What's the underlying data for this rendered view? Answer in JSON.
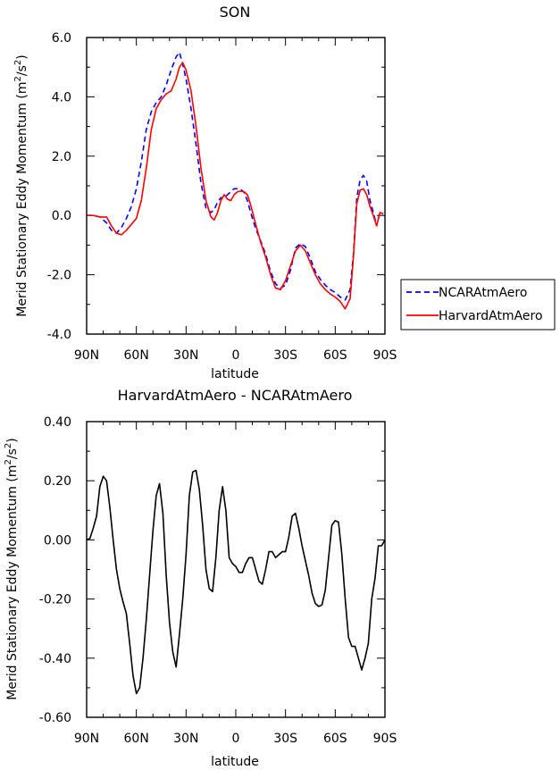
{
  "chart_data": [
    {
      "type": "line",
      "title": "SON",
      "xlabel": "latitude",
      "ylabel": "Merid Stationary Eddy Momentum (m²/s²)",
      "ylabel_parts": {
        "main": "Merid Stationary Eddy Momentum (m",
        "sup1": "2",
        "mid": "/s",
        "sup2": "2",
        "end": ")"
      },
      "xlim": [
        90,
        -90
      ],
      "ylim": [
        -4,
        6
      ],
      "xticks": [
        90,
        60,
        30,
        0,
        -30,
        -60,
        -90
      ],
      "xtick_labels": [
        "90N",
        "60N",
        "30N",
        "0",
        "30S",
        "60S",
        "90S"
      ],
      "yticks": [
        -4,
        -2,
        0,
        2,
        4,
        6
      ],
      "ytick_labels": [
        "-4.0",
        "-2.0",
        "0.0",
        "2.0",
        "4.0",
        "6.0"
      ],
      "legend_position": "right",
      "series": [
        {
          "name": "NCARAtmAero",
          "color": "#0000ff",
          "dash": "dashed",
          "x": [
            90,
            86,
            82,
            78,
            75,
            72,
            69,
            66,
            63,
            60,
            57,
            54,
            51,
            48,
            45,
            42,
            39,
            36,
            34,
            32,
            30,
            27,
            24,
            21,
            18,
            15,
            13,
            11,
            9,
            7,
            5,
            3,
            1,
            -1,
            -3,
            -5,
            -7,
            -9,
            -12,
            -15,
            -18,
            -21,
            -24,
            -27,
            -30,
            -33,
            -36,
            -39,
            -42,
            -45,
            -48,
            -51,
            -54,
            -57,
            -60,
            -63,
            -66,
            -69,
            -71,
            -73,
            -75,
            -77,
            -79,
            -81,
            -83,
            -85,
            -87,
            -89
          ],
          "y": [
            0.0,
            0.0,
            -0.05,
            -0.25,
            -0.5,
            -0.6,
            -0.4,
            -0.1,
            0.3,
            0.9,
            1.8,
            2.9,
            3.5,
            3.8,
            4.0,
            4.4,
            4.9,
            5.35,
            5.5,
            5.1,
            4.6,
            3.6,
            2.4,
            1.1,
            0.25,
            0.1,
            0.2,
            0.45,
            0.6,
            0.6,
            0.7,
            0.8,
            0.9,
            0.9,
            0.88,
            0.78,
            0.5,
            0.1,
            -0.45,
            -0.85,
            -1.3,
            -1.9,
            -2.3,
            -2.45,
            -2.35,
            -1.85,
            -1.1,
            -0.95,
            -1.05,
            -1.45,
            -1.9,
            -2.15,
            -2.35,
            -2.5,
            -2.6,
            -2.75,
            -2.85,
            -2.5,
            -1.3,
            0.6,
            1.2,
            1.35,
            1.15,
            0.5,
            0.1,
            -0.35,
            0.1,
            0.05
          ]
        },
        {
          "name": "HarvardAtmAero",
          "color": "#ff0000",
          "dash": "solid",
          "x": [
            90,
            86,
            82,
            78,
            75,
            72,
            69,
            66,
            63,
            60,
            57,
            54,
            51,
            48,
            45,
            42,
            39,
            36,
            34,
            32,
            30,
            27,
            24,
            21,
            18,
            15,
            13,
            11,
            9,
            7,
            5,
            3,
            1,
            -1,
            -3,
            -5,
            -7,
            -9,
            -12,
            -15,
            -18,
            -21,
            -24,
            -27,
            -30,
            -33,
            -36,
            -39,
            -42,
            -45,
            -48,
            -51,
            -54,
            -57,
            -60,
            -63,
            -66,
            -69,
            -71,
            -73,
            -75,
            -77,
            -79,
            -81,
            -83,
            -85,
            -87,
            -89
          ],
          "y": [
            0.0,
            0.0,
            -0.05,
            -0.05,
            -0.35,
            -0.6,
            -0.65,
            -0.5,
            -0.3,
            -0.1,
            0.5,
            1.6,
            2.9,
            3.6,
            3.9,
            4.1,
            4.2,
            4.6,
            5.0,
            5.15,
            4.9,
            4.2,
            3.0,
            1.6,
            0.5,
            -0.05,
            -0.15,
            0.1,
            0.5,
            0.7,
            0.55,
            0.5,
            0.7,
            0.8,
            0.82,
            0.8,
            0.7,
            0.35,
            -0.3,
            -0.9,
            -1.4,
            -2.0,
            -2.45,
            -2.5,
            -2.2,
            -1.7,
            -1.2,
            -1.0,
            -1.2,
            -1.6,
            -2.0,
            -2.3,
            -2.5,
            -2.65,
            -2.75,
            -2.9,
            -3.15,
            -2.8,
            -1.4,
            0.4,
            0.85,
            0.9,
            0.7,
            0.3,
            0.0,
            -0.35,
            0.1,
            0.05
          ]
        }
      ]
    },
    {
      "type": "line",
      "title": "HarvardAtmAero - NCARAtmAero",
      "xlabel": "latitude",
      "ylabel": "Merid Stationary Eddy Momentum (m²/s²)",
      "ylabel_parts": {
        "main": "Merid Stationary Eddy Momentum (m",
        "sup1": "2",
        "mid": "/s",
        "sup2": "2",
        "end": ")"
      },
      "xlim": [
        90,
        -90
      ],
      "ylim": [
        -0.6,
        0.4
      ],
      "xticks": [
        90,
        60,
        30,
        0,
        -30,
        -60,
        -90
      ],
      "xtick_labels": [
        "90N",
        "60N",
        "30N",
        "0",
        "30S",
        "60S",
        "90S"
      ],
      "yticks": [
        -0.6,
        -0.4,
        -0.2,
        0.0,
        0.2,
        0.4
      ],
      "ytick_labels": [
        "-0.60",
        "-0.40",
        "-0.20",
        "0.00",
        "0.20",
        "0.40"
      ],
      "series": [
        {
          "color": "#000000",
          "x": [
            90,
            88,
            86,
            84,
            82,
            80,
            78,
            76,
            74,
            72,
            70,
            68,
            66,
            64,
            62,
            60,
            58,
            56,
            54,
            52,
            50,
            48,
            46,
            44,
            42,
            40,
            38,
            36,
            34,
            32,
            30,
            28,
            26,
            24,
            22,
            20,
            18,
            16,
            14,
            12,
            10,
            8,
            6,
            4,
            2,
            0,
            -2,
            -4,
            -6,
            -8,
            -10,
            -12,
            -14,
            -16,
            -18,
            -20,
            -22,
            -24,
            -26,
            -28,
            -30,
            -32,
            -34,
            -36,
            -38,
            -40,
            -42,
            -44,
            -46,
            -48,
            -50,
            -52,
            -54,
            -56,
            -58,
            -60,
            -62,
            -64,
            -66,
            -68,
            -70,
            -72,
            -74,
            -76,
            -78,
            -80,
            -82,
            -84,
            -86,
            -88,
            -90
          ],
          "y": [
            0.0,
            0.005,
            0.04,
            0.08,
            0.18,
            0.215,
            0.2,
            0.11,
            0.0,
            -0.1,
            -0.165,
            -0.21,
            -0.25,
            -0.35,
            -0.46,
            -0.52,
            -0.5,
            -0.4,
            -0.27,
            -0.12,
            0.03,
            0.15,
            0.19,
            0.09,
            -0.12,
            -0.28,
            -0.38,
            -0.43,
            -0.32,
            -0.2,
            -0.05,
            0.15,
            0.23,
            0.235,
            0.17,
            0.05,
            -0.1,
            -0.165,
            -0.175,
            -0.06,
            0.1,
            0.18,
            0.1,
            -0.06,
            -0.08,
            -0.09,
            -0.11,
            -0.11,
            -0.08,
            -0.06,
            -0.06,
            -0.1,
            -0.14,
            -0.15,
            -0.1,
            -0.04,
            -0.04,
            -0.06,
            -0.05,
            -0.04,
            -0.04,
            0.01,
            0.08,
            0.09,
            0.04,
            -0.02,
            -0.07,
            -0.12,
            -0.18,
            -0.215,
            -0.225,
            -0.22,
            -0.17,
            -0.06,
            0.05,
            0.065,
            0.06,
            -0.05,
            -0.2,
            -0.33,
            -0.36,
            -0.36,
            -0.4,
            -0.44,
            -0.4,
            -0.35,
            -0.2,
            -0.13,
            -0.02,
            -0.02,
            0.0
          ]
        }
      ]
    }
  ]
}
